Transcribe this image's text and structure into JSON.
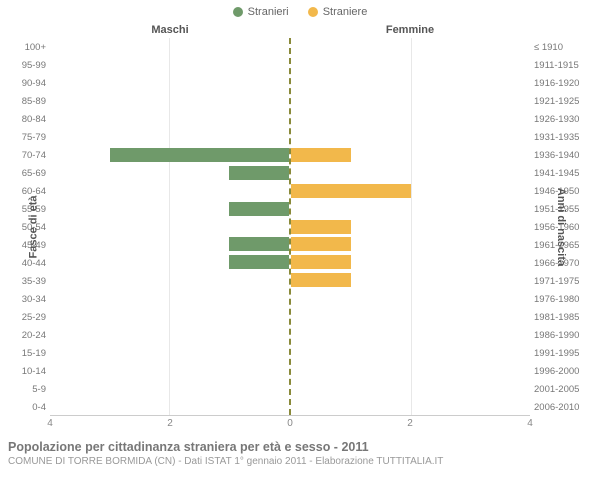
{
  "legend": {
    "stranieri": {
      "label": "Stranieri",
      "color": "#6f9a6a"
    },
    "straniere": {
      "label": "Straniere",
      "color": "#f2b84b"
    }
  },
  "headers": {
    "maschi": "Maschi",
    "femmine": "Femmine"
  },
  "axis_labels": {
    "left": "Fasce di età",
    "right": "Anni di nascita"
  },
  "age_bands": [
    "100+",
    "95-99",
    "90-94",
    "85-89",
    "80-84",
    "75-79",
    "70-74",
    "65-69",
    "60-64",
    "55-59",
    "50-54",
    "45-49",
    "40-44",
    "35-39",
    "30-34",
    "25-29",
    "20-24",
    "15-19",
    "10-14",
    "5-9",
    "0-4"
  ],
  "birth_years": [
    "≤ 1910",
    "1911-1915",
    "1916-1920",
    "1921-1925",
    "1926-1930",
    "1931-1935",
    "1936-1940",
    "1941-1945",
    "1946-1950",
    "1951-1955",
    "1956-1960",
    "1961-1965",
    "1966-1970",
    "1971-1975",
    "1976-1980",
    "1981-1985",
    "1986-1990",
    "1991-1995",
    "1996-2000",
    "2001-2005",
    "2006-2010"
  ],
  "maschi_values": [
    0,
    0,
    0,
    0,
    0,
    0,
    3,
    1,
    0,
    1,
    0,
    1,
    1,
    0,
    0,
    0,
    0,
    0,
    0,
    0,
    0
  ],
  "femmine_values": [
    0,
    0,
    0,
    0,
    0,
    0,
    1,
    0,
    2,
    0,
    1,
    1,
    1,
    1,
    0,
    0,
    0,
    0,
    0,
    0,
    0
  ],
  "bar_color_m": "#6f9a6a",
  "bar_color_f": "#f2b84b",
  "xmax": 4,
  "xticks_left": [
    4,
    2,
    0
  ],
  "xticks_right": [
    0,
    2,
    4
  ],
  "grid_color": "#e8e8e8",
  "caption_line1": "Popolazione per cittadinanza straniera per età e sesso - 2011",
  "caption_line2": "COMUNE DI TORRE BORMIDA (CN) - Dati ISTAT 1° gennaio 2011 - Elaborazione TUTTITALIA.IT"
}
